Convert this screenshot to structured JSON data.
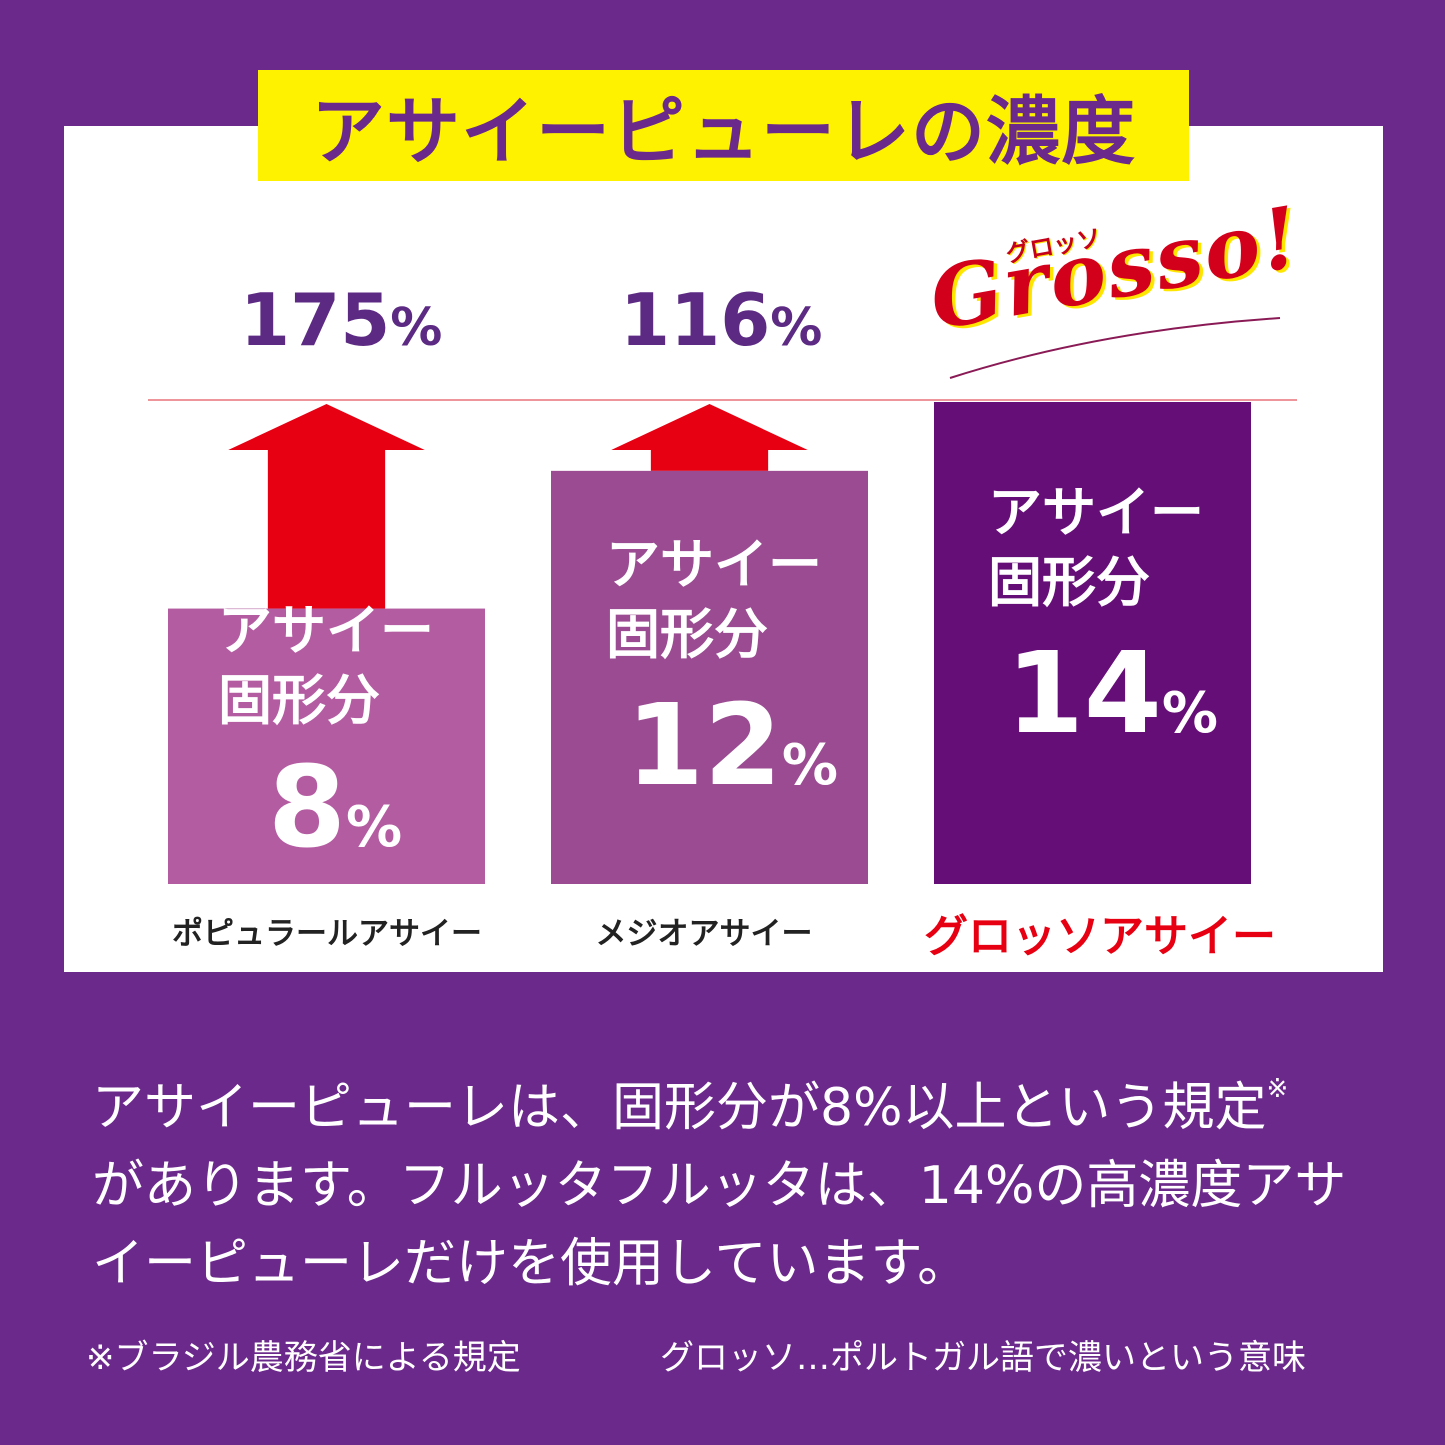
{
  "title": "アサイーピューレの濃度",
  "bar_label_line1": "アサイー",
  "bar_label_line2": "固形分",
  "grosso_kana": "グロッソ",
  "grosso_logo": "Grosso!",
  "description_line1": "アサイーピューレは、固形分が8%以上という規定",
  "description_mark": "※",
  "description_line2": "があります。フルッタフルッタは、14%の高濃度アサ",
  "description_line3": "イーピューレだけを使用しています。",
  "note_left": "※ブラジル農務省による規定",
  "note_right": "グロッソ…ポルトガル語で濃いという意味",
  "colors": {
    "background": "#6c298c",
    "title_bg": "#fff200",
    "bar_popular": "#b45ca1",
    "bar_medio": "#9a4b91",
    "bar_grosso": "#650e77",
    "arrow": "#e60012",
    "reference_line": "#e8707a"
  },
  "chart_data": {
    "type": "bar",
    "categories": [
      "ポピュラールアサイー",
      "メジオアサイー",
      "グロッソアサイー"
    ],
    "values": [
      8,
      12,
      14
    ],
    "value_labels": [
      "8",
      "12",
      "14"
    ],
    "unit": "%",
    "ratio_labels": [
      "175",
      "116",
      ""
    ],
    "highlight_index": 2,
    "ylim": [
      0,
      14
    ]
  }
}
